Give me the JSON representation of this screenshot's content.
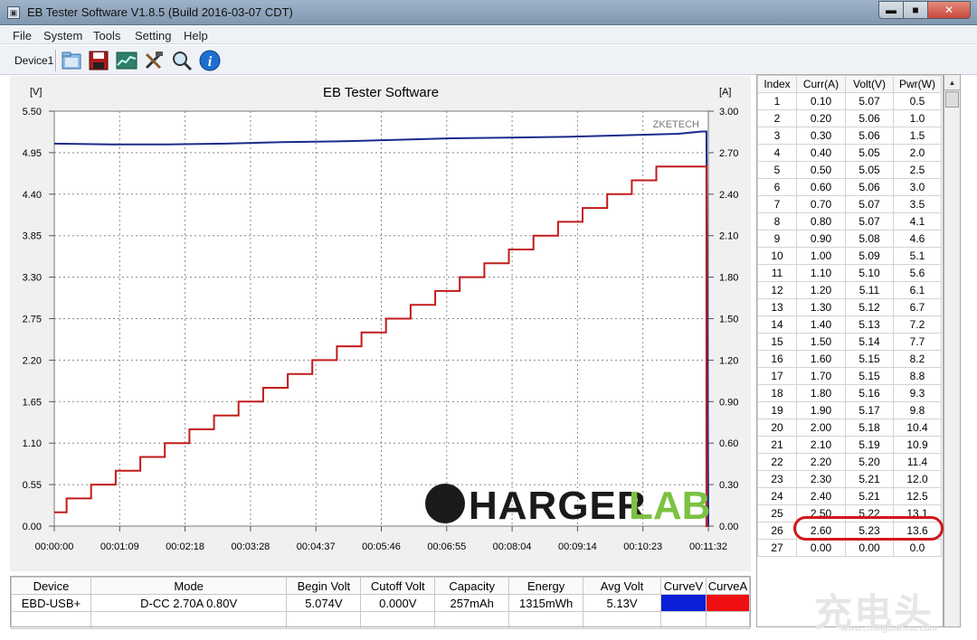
{
  "app": {
    "title": "EB Tester Software V1.8.5 (Build 2016-03-07 CDT)"
  },
  "window_buttons": {
    "minimize": "▬",
    "maximize": "■",
    "close": "✕"
  },
  "menu": [
    "File",
    "System",
    "Tools",
    "Setting",
    "Help"
  ],
  "toolbar": {
    "device_label": "Device1",
    "icons": [
      "open-folder-icon",
      "save-icon",
      "chart-icon",
      "tools-icon",
      "search-icon",
      "info-icon"
    ]
  },
  "chart_data": {
    "type": "line",
    "title": "EB Tester Software",
    "left_unit": "[V]",
    "right_unit": "[A]",
    "tag": "ZKETECH",
    "y_left_ticks": [
      "5.50",
      "4.95",
      "4.40",
      "3.85",
      "3.30",
      "2.75",
      "2.20",
      "1.65",
      "1.10",
      "0.55",
      "0.00"
    ],
    "y_right_ticks": [
      "3.00",
      "2.70",
      "2.40",
      "2.10",
      "1.80",
      "1.50",
      "1.20",
      "0.90",
      "0.60",
      "0.30",
      "0.00"
    ],
    "x_ticks": [
      "00:00:00",
      "00:01:09",
      "00:02:18",
      "00:03:28",
      "00:04:37",
      "00:05:46",
      "00:06:55",
      "00:08:04",
      "00:09:14",
      "00:10:23",
      "00:11:32"
    ],
    "ylim_left": [
      0,
      5.5
    ],
    "ylim_right": [
      0,
      3.0
    ],
    "x_range_seconds": [
      0,
      692
    ],
    "grid": true,
    "series": [
      {
        "axis": "left",
        "color": "#1b2a8c",
        "x": [
          0,
          60,
          120,
          180,
          240,
          300,
          360,
          420,
          480,
          540,
          600,
          660,
          685,
          690,
          692
        ],
        "values": [
          5.07,
          5.06,
          5.06,
          5.07,
          5.09,
          5.1,
          5.12,
          5.14,
          5.15,
          5.16,
          5.18,
          5.2,
          5.23,
          5.23,
          0.0
        ]
      },
      {
        "axis": "right",
        "color": "#c11b1b",
        "step_x": [
          0,
          13,
          39,
          65,
          91,
          117,
          143,
          169,
          195,
          221,
          247,
          273,
          299,
          325,
          351,
          377,
          403,
          429,
          455,
          481,
          507,
          533,
          559,
          585,
          611,
          637,
          663,
          690,
          692
        ],
        "step_values": [
          0.1,
          0.2,
          0.3,
          0.4,
          0.5,
          0.6,
          0.7,
          0.8,
          0.9,
          1.0,
          1.1,
          1.2,
          1.3,
          1.4,
          1.5,
          1.6,
          1.7,
          1.8,
          1.9,
          2.0,
          2.1,
          2.2,
          2.3,
          2.4,
          2.5,
          2.6,
          2.6,
          0.0,
          0.0
        ]
      }
    ]
  },
  "logo": {
    "prefix": "C",
    "word": "HARGER",
    "suffix": "LAB"
  },
  "table": {
    "headers": [
      "Index",
      "Curr(A)",
      "Volt(V)",
      "Pwr(W)"
    ],
    "rows": [
      [
        "1",
        "0.10",
        "5.07",
        "0.5"
      ],
      [
        "2",
        "0.20",
        "5.06",
        "1.0"
      ],
      [
        "3",
        "0.30",
        "5.06",
        "1.5"
      ],
      [
        "4",
        "0.40",
        "5.05",
        "2.0"
      ],
      [
        "5",
        "0.50",
        "5.05",
        "2.5"
      ],
      [
        "6",
        "0.60",
        "5.06",
        "3.0"
      ],
      [
        "7",
        "0.70",
        "5.07",
        "3.5"
      ],
      [
        "8",
        "0.80",
        "5.07",
        "4.1"
      ],
      [
        "9",
        "0.90",
        "5.08",
        "4.6"
      ],
      [
        "10",
        "1.00",
        "5.09",
        "5.1"
      ],
      [
        "11",
        "1.10",
        "5.10",
        "5.6"
      ],
      [
        "12",
        "1.20",
        "5.11",
        "6.1"
      ],
      [
        "13",
        "1.30",
        "5.12",
        "6.7"
      ],
      [
        "14",
        "1.40",
        "5.13",
        "7.2"
      ],
      [
        "15",
        "1.50",
        "5.14",
        "7.7"
      ],
      [
        "16",
        "1.60",
        "5.15",
        "8.2"
      ],
      [
        "17",
        "1.70",
        "5.15",
        "8.8"
      ],
      [
        "18",
        "1.80",
        "5.16",
        "9.3"
      ],
      [
        "19",
        "1.90",
        "5.17",
        "9.8"
      ],
      [
        "20",
        "2.00",
        "5.18",
        "10.4"
      ],
      [
        "21",
        "2.10",
        "5.19",
        "10.9"
      ],
      [
        "22",
        "2.20",
        "5.20",
        "11.4"
      ],
      [
        "23",
        "2.30",
        "5.21",
        "12.0"
      ],
      [
        "24",
        "2.40",
        "5.21",
        "12.5"
      ],
      [
        "25",
        "2.50",
        "5.22",
        "13.1"
      ],
      [
        "26",
        "2.60",
        "5.23",
        "13.6"
      ],
      [
        "27",
        "0.00",
        "0.00",
        "0.0"
      ]
    ]
  },
  "summary": {
    "headers": [
      "Device",
      "Mode",
      "Begin Volt",
      "Cutoff Volt",
      "Capacity",
      "Energy",
      "Avg Volt",
      "CurveV",
      "CurveA"
    ],
    "values": [
      "EBD-USB+",
      "D-CC  2.70A  0.80V",
      "5.074V",
      "0.000V",
      "257mAh",
      "1315mWh",
      "5.13V"
    ],
    "curve_colors": {
      "v": "#0b1ed8",
      "a": "#ef0e12"
    }
  },
  "watermark": {
    "text": "充电头",
    "url": "www.chongdiantou.com"
  }
}
